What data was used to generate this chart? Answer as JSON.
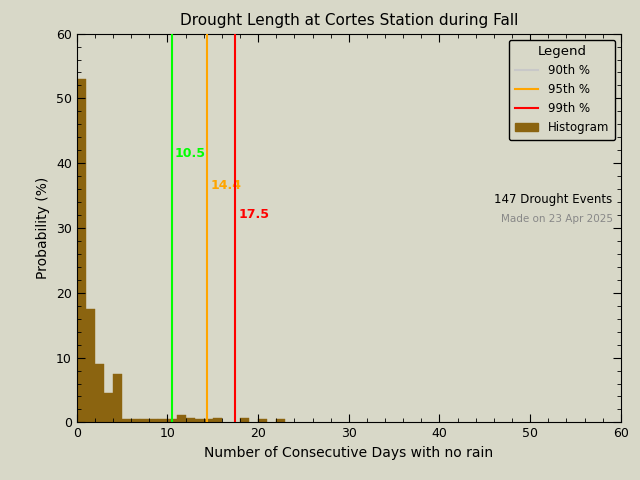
{
  "title": "Drought Length at Cortes Station during Fall",
  "xlabel": "Number of Consecutive Days with no rain",
  "ylabel": "Probability (%)",
  "xlim": [
    0,
    60
  ],
  "ylim": [
    0,
    60
  ],
  "xticks": [
    0,
    10,
    20,
    30,
    40,
    50,
    60
  ],
  "yticks": [
    0,
    10,
    20,
    30,
    40,
    50,
    60
  ],
  "bar_color": "#8B6410",
  "bar_edgecolor": "#8B6410",
  "percentile_90": 10.5,
  "percentile_95": 14.4,
  "percentile_99": 17.5,
  "p90_color": "#00FF00",
  "p95_color": "#FFA500",
  "p99_color": "#FF0000",
  "p90_legend_color": "#C8C8C8",
  "drought_events": 147,
  "made_on": "Made on 23 Apr 2025",
  "bin_width": 1,
  "bin_edges": [
    0,
    1,
    2,
    3,
    4,
    5,
    6,
    7,
    8,
    9,
    10,
    11,
    12,
    13,
    14,
    15,
    16,
    17,
    18,
    19,
    20,
    21,
    22,
    23,
    24,
    25,
    26,
    27,
    28,
    29,
    30,
    31,
    32,
    33,
    34,
    35,
    36,
    37,
    38,
    39,
    40,
    41,
    42,
    43,
    44,
    45,
    46,
    47,
    48,
    49,
    50,
    51,
    52,
    53,
    54,
    55,
    56,
    57,
    58,
    59,
    60
  ],
  "bin_heights": [
    53.0,
    17.5,
    9.0,
    4.5,
    7.5,
    0.5,
    0.5,
    0.5,
    0.5,
    0.5,
    0.5,
    1.2,
    0.7,
    0.5,
    0.5,
    0.7,
    0.0,
    0.0,
    0.7,
    0.0,
    0.5,
    0.0,
    0.5,
    0.0,
    0.0,
    0.0,
    0.0,
    0.0,
    0.0,
    0.0,
    0.0,
    0.0,
    0.0,
    0.0,
    0.0,
    0.0,
    0.0,
    0.0,
    0.0,
    0.0,
    0.0,
    0.0,
    0.0,
    0.0,
    0.0,
    0.0,
    0.0,
    0.0,
    0.0,
    0.0,
    0.0,
    0.0,
    0.0,
    0.0,
    0.0,
    0.0,
    0.0,
    0.0,
    0.0,
    0.0
  ],
  "background_color": "#D8D8C8",
  "plot_bg_color": "#D8D8C8",
  "legend_title": "Legend",
  "legend_90": "90th %",
  "legend_95": "95th %",
  "legend_99": "99th %",
  "legend_hist": "Histogram",
  "title_fontsize": 11,
  "axis_fontsize": 10,
  "tick_fontsize": 9
}
